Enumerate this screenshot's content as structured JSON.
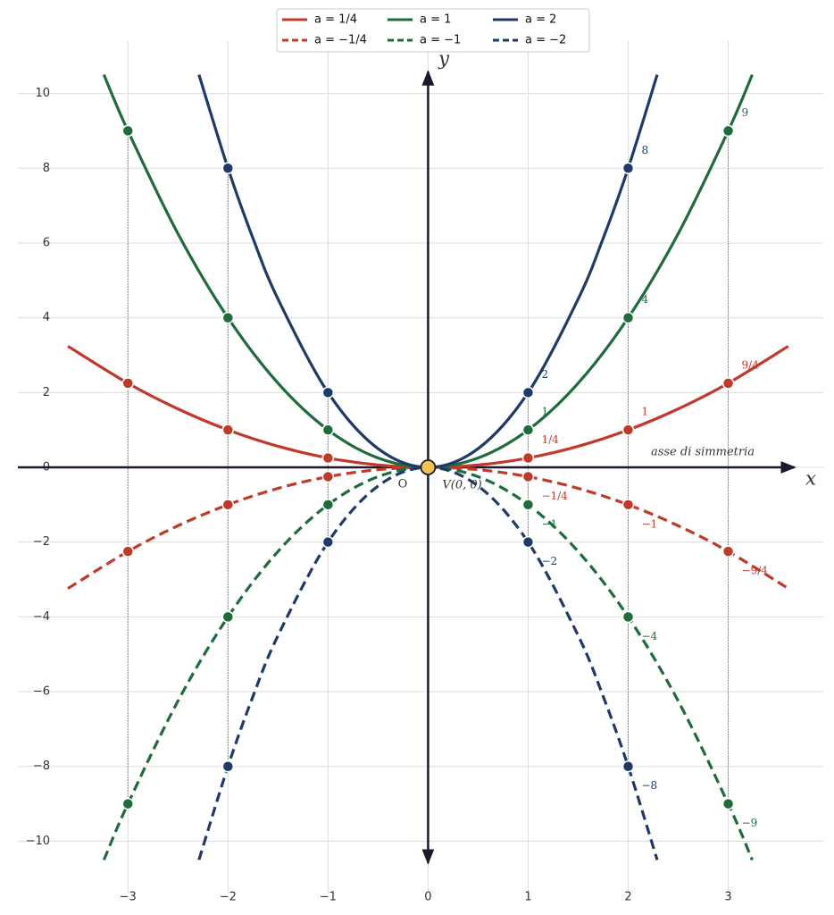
{
  "chart_data": {
    "type": "line",
    "xlim": [
      -4.1,
      3.95
    ],
    "ylim": [
      -11.4,
      11.4
    ],
    "xticks": [
      {
        "value": -3,
        "label": "−3"
      },
      {
        "value": -2,
        "label": "−2"
      },
      {
        "value": -1,
        "label": "−1"
      },
      0,
      1,
      2,
      3
    ],
    "yticks": [
      {
        "value": -10,
        "label": "−10"
      },
      {
        "value": -8,
        "label": "−8"
      },
      {
        "value": -6,
        "label": "−6"
      },
      {
        "value": -4,
        "label": "−4"
      },
      {
        "value": -2,
        "label": "−2"
      },
      0,
      2,
      4,
      6,
      8,
      10
    ],
    "grid": true,
    "legend": "top",
    "x_label": "x",
    "y_label": "y",
    "origin_label": "O",
    "annotations": [
      "asse di simmetria"
    ],
    "vertex": {
      "x": 0,
      "y": 0,
      "label": "V(0, 0)",
      "color": "#f2c14e"
    },
    "series": [
      {
        "name": "a = 1/4",
        "color": "#c0392b",
        "linestyle": "solid",
        "x": [
          -3.6,
          -3,
          -2.5,
          -2,
          -1.5,
          -1,
          -0.5,
          0,
          0.5,
          1,
          1.5,
          2,
          2.5,
          3,
          3.6
        ],
        "values": [
          3.24,
          2.25,
          1.5625,
          1,
          0.5625,
          0.25,
          0.0625,
          0,
          0.0625,
          0.25,
          0.5625,
          1,
          1.5625,
          2.25,
          3.24
        ],
        "points": {
          "x": [
            -3,
            -2,
            -1,
            1,
            2,
            3
          ],
          "values": [
            2.25,
            1,
            0.25,
            0.25,
            1,
            2.25
          ],
          "value_labels": [
            null,
            null,
            null,
            "1/4",
            "1",
            "9/4"
          ]
        }
      },
      {
        "name": "a = −1/4",
        "color": "#c0392b",
        "linestyle": "dashed",
        "x": [
          -3.6,
          -3,
          -2.5,
          -2,
          -1.5,
          -1,
          -0.5,
          0,
          0.5,
          1,
          1.5,
          2,
          2.5,
          3,
          3.6
        ],
        "values": [
          -3.24,
          -2.25,
          -1.5625,
          -1,
          -0.5625,
          -0.25,
          -0.0625,
          0,
          -0.0625,
          -0.25,
          -0.5625,
          -1,
          -1.5625,
          -2.25,
          -3.24
        ],
        "points": {
          "x": [
            -3,
            -2,
            -1,
            1,
            2,
            3
          ],
          "values": [
            -2.25,
            -1,
            -0.25,
            -0.25,
            -1,
            -2.25
          ],
          "value_labels": [
            null,
            null,
            null,
            "−1/4",
            "−1",
            "−9/4"
          ]
        }
      },
      {
        "name": "a = 1",
        "color": "#1e6b3c",
        "linestyle": "solid",
        "x": [
          -3.24,
          -3,
          -2.5,
          -2,
          -1.5,
          -1,
          -0.5,
          0,
          0.5,
          1,
          1.5,
          2,
          2.5,
          3,
          3.24
        ],
        "values": [
          10.5,
          9,
          6.25,
          4,
          2.25,
          1,
          0.25,
          0,
          0.25,
          1,
          2.25,
          4,
          6.25,
          9,
          10.5
        ],
        "points": {
          "x": [
            -3,
            -2,
            -1,
            1,
            2,
            3
          ],
          "values": [
            9,
            4,
            1,
            1,
            4,
            9
          ],
          "value_labels": [
            null,
            null,
            null,
            "1",
            "4",
            "9"
          ]
        }
      },
      {
        "name": "a = −1",
        "color": "#1e6b3c",
        "linestyle": "dashed",
        "x": [
          -3.24,
          -3,
          -2.5,
          -2,
          -1.5,
          -1,
          -0.5,
          0,
          0.5,
          1,
          1.5,
          2,
          2.5,
          3,
          3.24
        ],
        "values": [
          -10.5,
          -9,
          -6.25,
          -4,
          -2.25,
          -1,
          -0.25,
          0,
          -0.25,
          -1,
          -2.25,
          -4,
          -6.25,
          -9,
          -10.5
        ],
        "points": {
          "x": [
            -3,
            -2,
            -1,
            1,
            2,
            3
          ],
          "values": [
            -9,
            -4,
            -1,
            -1,
            -4,
            -9
          ],
          "value_labels": [
            null,
            null,
            null,
            "−1",
            "−4",
            "−9"
          ]
        }
      },
      {
        "name": "a = 2",
        "color": "#1f3a68",
        "linestyle": "solid",
        "x": [
          -2.29,
          -2,
          -1.75,
          -1.5,
          -1,
          -0.5,
          0,
          0.5,
          1,
          1.5,
          1.75,
          2,
          2.29
        ],
        "values": [
          10.5,
          8,
          6.125,
          4.5,
          2,
          0.5,
          0,
          0.5,
          2,
          4.5,
          6.125,
          8,
          10.5
        ],
        "points": {
          "x": [
            -2,
            -1,
            1,
            2
          ],
          "values": [
            8,
            2,
            2,
            8
          ],
          "value_labels": [
            null,
            null,
            "2",
            "8"
          ]
        }
      },
      {
        "name": "a = −2",
        "color": "#1f3a68",
        "linestyle": "dashed",
        "x": [
          -2.29,
          -2,
          -1.75,
          -1.5,
          -1,
          -0.5,
          0,
          0.5,
          1,
          1.5,
          1.75,
          2,
          2.29
        ],
        "values": [
          -10.5,
          -8,
          -6.125,
          -4.5,
          -2,
          -0.5,
          0,
          -0.5,
          -2,
          -4.5,
          -6.125,
          -8,
          -10.5
        ],
        "points": {
          "x": [
            -2,
            -1,
            1,
            2
          ],
          "values": [
            -8,
            -2,
            -2,
            -8
          ],
          "value_labels": [
            null,
            null,
            "−2",
            "−8"
          ]
        }
      }
    ]
  }
}
